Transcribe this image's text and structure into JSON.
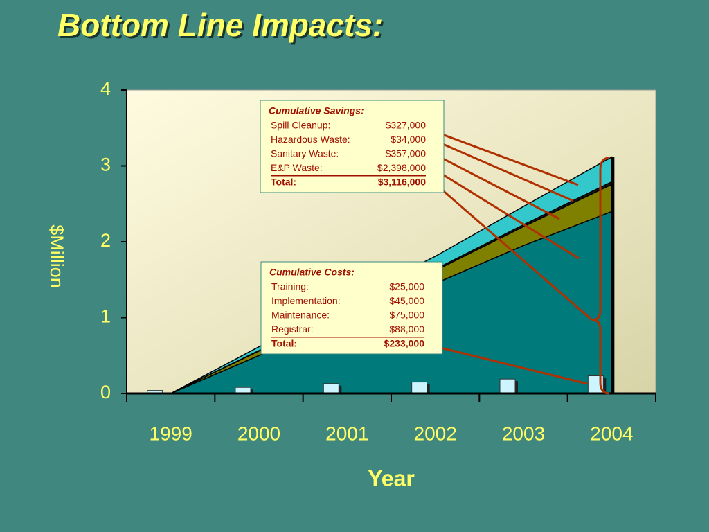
{
  "chart_data": {
    "type": "stacked-area",
    "title": "Bottom Line Impacts:",
    "x_label": "Year",
    "y_label": "$Million",
    "categories": [
      "1999",
      "2000",
      "2001",
      "2002",
      "2003",
      "2004"
    ],
    "ylim": [
      0,
      4
    ],
    "yticks": [
      0,
      1,
      2,
      3,
      4
    ],
    "series": [
      {
        "color": "#007a7a",
        "values": [
          0,
          0.5,
          1.0,
          1.45,
          1.95,
          2.398
        ]
      },
      {
        "color": "#7f7f00",
        "values": [
          0,
          0.06,
          0.11,
          0.17,
          0.25,
          0.357
        ]
      },
      {
        "color": "#1a1a1a",
        "values": [
          0,
          0.006,
          0.012,
          0.018,
          0.025,
          0.034
        ]
      },
      {
        "color": "#33c9cc",
        "values": [
          0,
          0.05,
          0.1,
          0.17,
          0.24,
          0.327
        ]
      }
    ],
    "bars": {
      "color": "#ccf5ff",
      "values": [
        0.04,
        0.08,
        0.13,
        0.15,
        0.19,
        0.233
      ]
    },
    "savings_box": {
      "title": "Cumulative Savings:",
      "rows": [
        [
          "Spill Cleanup:",
          "$327,000"
        ],
        [
          "Hazardous Waste:",
          "$34,000"
        ],
        [
          "Sanitary Waste:",
          "$357,000"
        ],
        [
          "E&P Waste:",
          "$2,398,000"
        ]
      ],
      "total": [
        "Total:",
        "$3,116,000"
      ]
    },
    "costs_box": {
      "title": "Cumulative Costs:",
      "rows": [
        [
          "Training:",
          "$25,000"
        ],
        [
          "Implementation:",
          "$45,000"
        ],
        [
          "Maintenance:",
          "$75,000"
        ],
        [
          "Registrar:",
          "$88,000"
        ]
      ],
      "total": [
        "Total:",
        "$233,000"
      ]
    }
  }
}
